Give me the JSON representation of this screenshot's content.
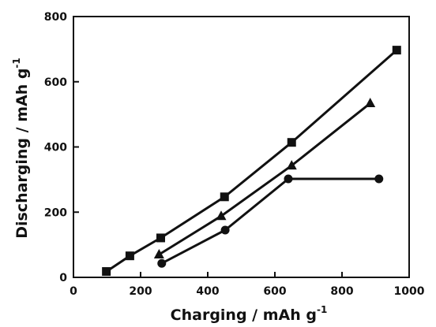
{
  "chart_data": {
    "type": "scatter",
    "title": "",
    "xlabel": "Charging / mAh g",
    "xlabel_superscript": "-1",
    "ylabel": "Discharging / mAh g",
    "ylabel_superscript": "-1",
    "xlim": [
      0,
      1000
    ],
    "ylim": [
      0,
      800
    ],
    "xticks": [
      "0",
      "200",
      "400",
      "600",
      "800",
      "1000"
    ],
    "yticks": [
      "0",
      "200",
      "400",
      "600",
      "800"
    ],
    "grid": false,
    "legend": "none",
    "series": [
      {
        "marker": "square",
        "color": "#111111",
        "points": [
          [
            98,
            18
          ],
          [
            168,
            66
          ],
          [
            260,
            121
          ],
          [
            450,
            247
          ],
          [
            650,
            414
          ],
          [
            963,
            697
          ]
        ]
      },
      {
        "marker": "triangle",
        "color": "#111111",
        "points": [
          [
            255,
            70
          ],
          [
            440,
            188
          ],
          [
            650,
            343
          ],
          [
            884,
            534
          ]
        ]
      },
      {
        "marker": "circle",
        "color": "#111111",
        "points": [
          [
            263,
            43
          ],
          [
            452,
            145
          ],
          [
            640,
            302
          ],
          [
            910,
            302
          ]
        ]
      }
    ]
  }
}
